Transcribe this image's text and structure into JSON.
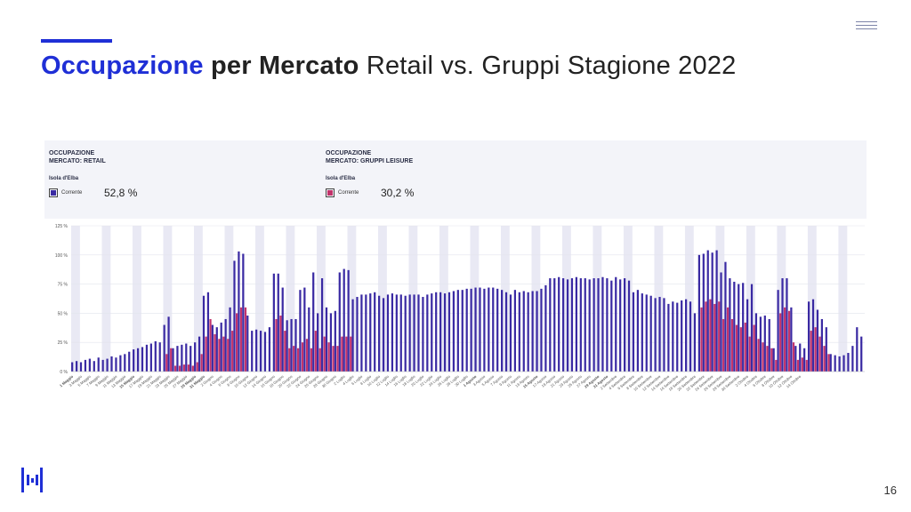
{
  "slide": {
    "title_part1": "Occupazione",
    "title_part2": "per Mercato",
    "title_part3": "Retail vs. Gruppi Stagione 2022",
    "page_number": "16"
  },
  "colors": {
    "accent": "#1f2fd6",
    "retail": "#3a2aa3",
    "groups": "#c2336b",
    "weekend_band": "#e9e9f4"
  },
  "panels": [
    {
      "title": "OCCUPAZIONE",
      "subtitle": "MERCATO: RETAIL",
      "location": "Isola d'Elba",
      "legend": "Corrente",
      "value": "52,8 %"
    },
    {
      "title": "OCCUPAZIONE",
      "subtitle": "MERCATO: GRUPPI LEISURE",
      "location": "Isola d'Elba",
      "legend": "Corrente",
      "value": "30,2 %"
    }
  ],
  "chart_data": {
    "type": "bar",
    "ylim": [
      0,
      125
    ],
    "yticks": [
      "0 %",
      "25 %",
      "50 %",
      "75 %",
      "100 %",
      "125 %"
    ],
    "x_start": "1 Maggio",
    "x_end": "15 Ottobre",
    "xtick_labels": [
      "1 Maggio",
      "3 Maggio",
      "5 Maggio",
      "7 Maggio",
      "9 Maggio",
      "11 Maggio",
      "13 Maggio",
      "15 Maggio",
      "17 Maggio",
      "19 Maggio",
      "21 Maggio",
      "23 Maggio",
      "25 Maggio",
      "27 Maggio",
      "29 Maggio",
      "31 Maggio",
      "2 Giugno",
      "4 Giugno",
      "6 Giugno",
      "8 Giugno",
      "10 Giugno",
      "12 Giugno",
      "14 Giugno",
      "16 Giugno",
      "18 Giugno",
      "20 Giugno",
      "22 Giugno",
      "24 Giugno",
      "26 Giugno",
      "28 Giugno",
      "30 Giugno",
      "2 Luglio",
      "4 Luglio",
      "6 Luglio",
      "8 Luglio",
      "10 Luglio",
      "12 Luglio",
      "14 Luglio",
      "16 Luglio",
      "18 Luglio",
      "20 Luglio",
      "22 Luglio",
      "24 Luglio",
      "26 Luglio",
      "28 Luglio",
      "30 Luglio",
      "1 Agosto",
      "3 Agosto",
      "5 Agosto",
      "7 Agosto",
      "9 Agosto",
      "11 Agosto",
      "13 Agosto",
      "15 Agosto",
      "17 Agosto",
      "19 Agosto",
      "21 Agosto",
      "23 Agosto",
      "25 Agosto",
      "27 Agosto",
      "29 Agosto",
      "31 Agosto",
      "2 Settembre",
      "4 Settembre",
      "6 Settembre",
      "8 Settembre",
      "10 Settembre",
      "12 Settembre",
      "14 Settembre",
      "16 Settembre",
      "18 Settembre",
      "20 Settembre",
      "22 Settembre",
      "24 Settembre",
      "26 Settembre",
      "28 Settembre",
      "30 Settembre",
      "2 Ottobre",
      "4 Ottobre",
      "6 Ottobre",
      "8 Ottobre",
      "10 Ottobre",
      "12 Ottobre",
      "14 Ottobre"
    ],
    "series": [
      {
        "name": "Retail",
        "values": [
          8,
          9,
          8,
          10,
          11,
          9,
          12,
          10,
          11,
          13,
          12,
          14,
          15,
          17,
          19,
          20,
          21,
          23,
          24,
          26,
          25,
          40,
          47,
          20,
          22,
          23,
          24,
          22,
          25,
          30,
          65,
          68,
          40,
          38,
          42,
          45,
          55,
          95,
          103,
          101,
          48,
          35,
          36,
          35,
          34,
          38,
          84,
          84,
          72,
          44,
          45,
          45,
          70,
          72,
          55,
          85,
          50,
          80,
          55,
          50,
          52,
          85,
          88,
          87,
          62,
          64,
          66,
          66,
          67,
          68,
          65,
          63,
          66,
          67,
          66,
          66,
          65,
          66,
          66,
          66,
          64,
          66,
          67,
          68,
          68,
          67,
          68,
          69,
          70,
          70,
          71,
          71,
          72,
          72,
          71,
          72,
          72,
          71,
          70,
          68,
          66,
          70,
          68,
          69,
          68,
          69,
          69,
          71,
          74,
          80,
          80,
          81,
          80,
          79,
          80,
          81,
          80,
          80,
          79,
          80,
          80,
          81,
          80,
          78,
          81,
          79,
          80,
          78,
          68,
          70,
          67,
          66,
          65,
          63,
          64,
          63,
          58,
          60,
          59,
          61,
          62,
          60,
          50,
          100,
          101,
          104,
          102,
          104,
          85,
          94,
          80,
          77,
          75,
          76,
          62,
          75,
          50,
          47,
          48,
          45,
          20,
          70,
          80,
          80,
          55,
          22,
          24,
          20,
          60,
          62,
          53,
          45,
          38,
          15,
          14,
          13,
          14,
          16,
          22,
          38,
          30
        ]
      },
      {
        "name": "Gruppi Leisure",
        "values": [
          0,
          0,
          0,
          0,
          0,
          0,
          0,
          0,
          0,
          0,
          0,
          0,
          0,
          0,
          0,
          0,
          0,
          0,
          0,
          0,
          0,
          15,
          20,
          5,
          5,
          6,
          6,
          5,
          8,
          15,
          30,
          45,
          32,
          28,
          30,
          28,
          35,
          50,
          55,
          55,
          0,
          0,
          0,
          0,
          0,
          0,
          45,
          48,
          35,
          20,
          22,
          20,
          25,
          28,
          20,
          35,
          20,
          30,
          25,
          22,
          22,
          30,
          30,
          30,
          0,
          0,
          0,
          0,
          0,
          0,
          0,
          0,
          0,
          0,
          0,
          0,
          0,
          0,
          0,
          0,
          0,
          0,
          0,
          0,
          0,
          0,
          0,
          0,
          0,
          0,
          0,
          0,
          0,
          0,
          0,
          0,
          0,
          0,
          0,
          0,
          0,
          0,
          0,
          0,
          0,
          0,
          0,
          0,
          0,
          0,
          0,
          0,
          0,
          0,
          0,
          0,
          0,
          0,
          0,
          0,
          0,
          0,
          0,
          0,
          0,
          0,
          0,
          0,
          0,
          0,
          0,
          0,
          0,
          0,
          0,
          0,
          0,
          0,
          0,
          0,
          0,
          0,
          0,
          55,
          60,
          62,
          58,
          60,
          45,
          55,
          45,
          40,
          38,
          42,
          30,
          40,
          28,
          25,
          22,
          20,
          10,
          50,
          55,
          52,
          25,
          10,
          12,
          10,
          35,
          38,
          30,
          22,
          15,
          0,
          0,
          0,
          0,
          0,
          0,
          0,
          0
        ]
      }
    ]
  }
}
